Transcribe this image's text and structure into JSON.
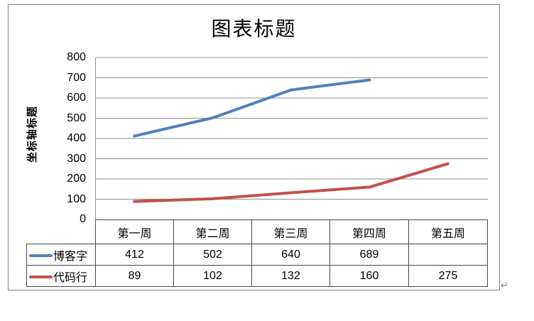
{
  "title": "图表标题",
  "y_axis_title": "坐标轴标题",
  "paragraph_mark": "↵",
  "colors": {
    "series1": "#4F81BD",
    "series2": "#C0504D",
    "gridline": "#8E8E8E",
    "axis_line": "#8E8E8E",
    "table_border": "#4a4a4a",
    "frame_border": "#808080"
  },
  "chart_data": {
    "type": "line",
    "title": "图表标题",
    "xlabel": "",
    "ylabel": "坐标轴标题",
    "categories": [
      "第一周",
      "第二周",
      "第三周",
      "第四周",
      "第五周"
    ],
    "series": [
      {
        "name": "博客字",
        "color": "#4F81BD",
        "values": [
          412,
          502,
          640,
          689,
          null
        ]
      },
      {
        "name": "代码行",
        "color": "#C0504D",
        "values": [
          89,
          102,
          132,
          160,
          275
        ]
      }
    ],
    "ylim": [
      0,
      800
    ],
    "yticks": [
      800,
      700,
      600,
      500,
      400,
      300,
      200,
      100,
      0
    ],
    "grid": true,
    "legend_position": "table-left"
  }
}
